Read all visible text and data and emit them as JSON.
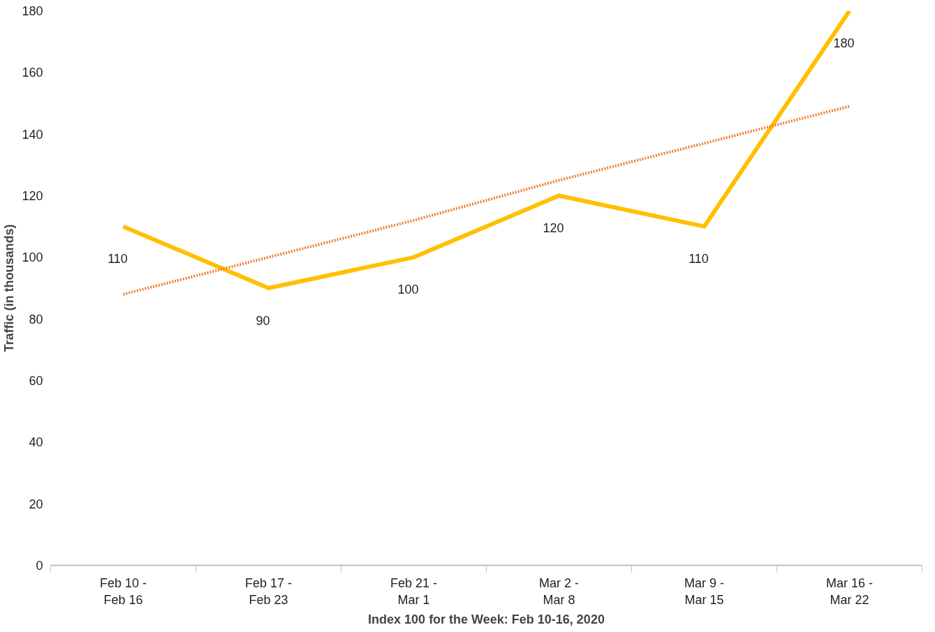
{
  "chart_data": {
    "type": "line",
    "xlabel": "Index 100 for the Week: Feb 10-16, 2020",
    "ylabel": "Traffic (in thousands)",
    "categories": [
      "Feb 10 -\nFeb 16",
      "Feb 17 -\nFeb 23",
      "Feb 21 -\nMar 1",
      "Mar 2 -\nMar 8",
      "Mar 9 -\nMar 15",
      "Mar 16 -\nMar 22"
    ],
    "series": [
      {
        "color": "#ffc000",
        "values": [
          110,
          90,
          100,
          120,
          110,
          180
        ],
        "line_style": "solid",
        "data_labels": true
      },
      {
        "color": "#ed7d31",
        "values": [
          88,
          100,
          112,
          125,
          137,
          149
        ],
        "line_style": "dotted"
      }
    ],
    "ylim": [
      0,
      180
    ],
    "yticks": [
      0,
      20,
      40,
      60,
      80,
      100,
      120,
      140,
      160,
      180
    ],
    "grid": false
  }
}
